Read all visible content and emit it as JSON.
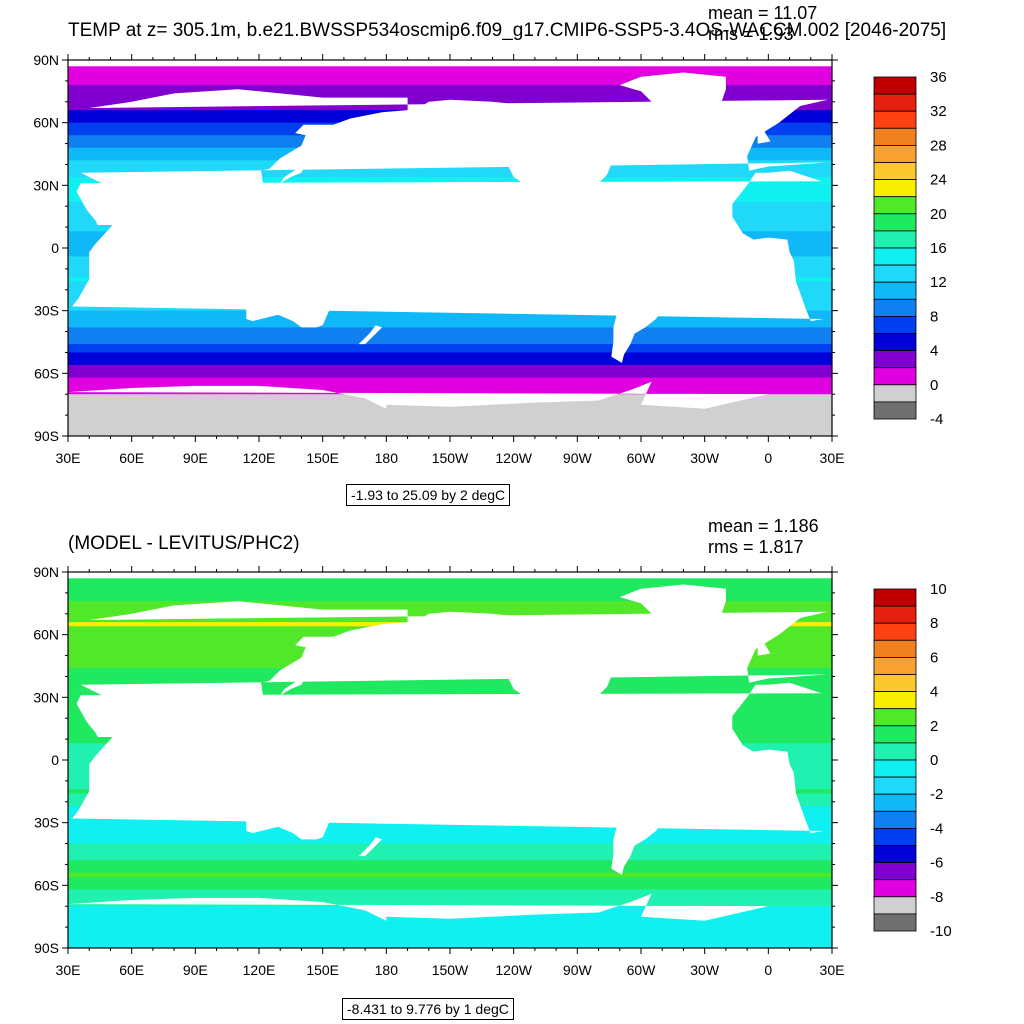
{
  "panels": [
    {
      "title": "TEMP at z= 305.1m, b.e21.BWSSP534oscmip6.f09_g17.CMIP6-SSP5-3.4OS-WACCM.002 [2046-2075]",
      "mean_text": "mean = 11.07",
      "rms_text": "rms = 1.93",
      "range_note": "-1.93 to 25.09 by 2 degC",
      "colorbar": {
        "labels": [
          "36",
          "32",
          "28",
          "24",
          "20",
          "16",
          "12",
          "8",
          "4",
          "0",
          "-4"
        ],
        "colors": [
          "#c00000",
          "#e62010",
          "#ff4010",
          "#f08020",
          "#f8a030",
          "#fcc830",
          "#f8f000",
          "#50e828",
          "#20e860",
          "#20f0b0",
          "#10f0f0",
          "#20d8f8",
          "#10b8f8",
          "#1080f0",
          "#0040f0",
          "#0000d8",
          "#8000d0",
          "#e000e0",
          "#d0d0d0",
          "#707070"
        ]
      }
    },
    {
      "title": "(MODEL - LEVITUS/PHC2)",
      "mean_text": "mean = 1.186",
      "rms_text": "rms = 1.817",
      "range_note": "-8.431 to 9.776 by 1 degC",
      "colorbar": {
        "labels": [
          "10",
          "8",
          "6",
          "4",
          "2",
          "0",
          "-2",
          "-4",
          "-6",
          "-8",
          "-10"
        ],
        "colors": [
          "#c00000",
          "#e62010",
          "#ff4010",
          "#f08020",
          "#f8a030",
          "#fcc830",
          "#f8f000",
          "#50e828",
          "#20e860",
          "#20f0b0",
          "#10f0f0",
          "#20d8f8",
          "#10b8f8",
          "#1080f0",
          "#0040f0",
          "#0000d8",
          "#8000d0",
          "#e000e0",
          "#d0d0d0",
          "#707070"
        ]
      }
    }
  ],
  "axes": {
    "lat_labels": [
      "90N",
      "60N",
      "30N",
      "0",
      "30S",
      "60S",
      "90S"
    ],
    "lon_labels": [
      "30E",
      "60E",
      "90E",
      "120E",
      "150E",
      "180",
      "150W",
      "120W",
      "90W",
      "60W",
      "30W",
      "0",
      "30E"
    ]
  },
  "chart_data": [
    {
      "type": "heatmap",
      "title": "TEMP at z= 305.1m, b.e21.BWSSP534oscmip6.f09_g17.CMIP6-SSP5-3.4OS-WACCM.002 [2046-2075]",
      "xlabel": "",
      "ylabel": "",
      "x_ticks": [
        "30E",
        "60E",
        "90E",
        "120E",
        "150E",
        "180",
        "150W",
        "120W",
        "90W",
        "60W",
        "30W",
        "0",
        "30E"
      ],
      "y_ticks": [
        "90N",
        "60N",
        "30N",
        "0",
        "30S",
        "60S",
        "90S"
      ],
      "xlim": [
        30,
        390
      ],
      "ylim": [
        -90,
        90
      ],
      "zlim": [
        -4,
        36
      ],
      "levels": [
        -4,
        -2,
        0,
        2,
        4,
        6,
        8,
        10,
        12,
        14,
        16,
        18,
        20,
        22,
        24,
        26,
        28,
        30,
        32,
        34,
        36
      ],
      "mean": 11.07,
      "rms": 1.93,
      "data_min": -1.93,
      "data_max": 25.09,
      "contour_interval": 2,
      "units": "degC",
      "zonal_profile": [
        {
          "lat": 85,
          "value": 1
        },
        {
          "lat": 70,
          "value": 3
        },
        {
          "lat": 60,
          "value": 6
        },
        {
          "lat": 45,
          "value": 11
        },
        {
          "lat": 30,
          "value": 15
        },
        {
          "lat": 15,
          "value": 13
        },
        {
          "lat": 0,
          "value": 11
        },
        {
          "lat": -15,
          "value": 14
        },
        {
          "lat": -30,
          "value": 12
        },
        {
          "lat": -45,
          "value": 8
        },
        {
          "lat": -55,
          "value": 4
        },
        {
          "lat": -65,
          "value": 1
        },
        {
          "lat": -75,
          "value": -1
        }
      ]
    },
    {
      "type": "heatmap",
      "title": "(MODEL - LEVITUS/PHC2)",
      "xlabel": "",
      "ylabel": "",
      "x_ticks": [
        "30E",
        "60E",
        "90E",
        "120E",
        "150E",
        "180",
        "150W",
        "120W",
        "90W",
        "60W",
        "30W",
        "0",
        "30E"
      ],
      "y_ticks": [
        "90N",
        "60N",
        "30N",
        "0",
        "30S",
        "60S",
        "90S"
      ],
      "xlim": [
        30,
        390
      ],
      "ylim": [
        -90,
        90
      ],
      "zlim": [
        -10,
        10
      ],
      "levels": [
        -10,
        -9,
        -8,
        -7,
        -6,
        -5,
        -4,
        -3,
        -2,
        -1,
        0,
        1,
        2,
        3,
        4,
        5,
        6,
        7,
        8,
        9,
        10
      ],
      "mean": 1.186,
      "rms": 1.817,
      "data_min": -8.431,
      "data_max": 9.776,
      "contour_interval": 1,
      "units": "degC",
      "zonal_profile": [
        {
          "lat": 85,
          "value": 1
        },
        {
          "lat": 65,
          "value": 3
        },
        {
          "lat": 45,
          "value": 2
        },
        {
          "lat": 30,
          "value": 1
        },
        {
          "lat": 15,
          "value": 1.5
        },
        {
          "lat": 0,
          "value": 0.5
        },
        {
          "lat": -15,
          "value": 1
        },
        {
          "lat": -30,
          "value": -1
        },
        {
          "lat": -45,
          "value": 0.5
        },
        {
          "lat": -55,
          "value": 2
        },
        {
          "lat": -65,
          "value": 0.5
        },
        {
          "lat": -75,
          "value": -0.5
        }
      ]
    }
  ]
}
